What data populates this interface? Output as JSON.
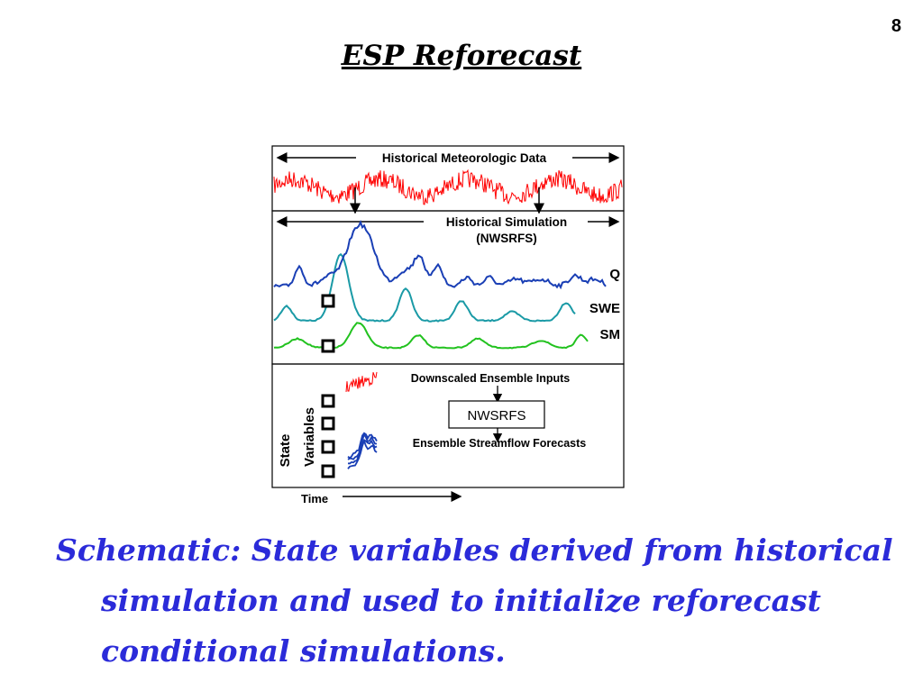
{
  "page_number": "8",
  "title": "ESP Reforecast",
  "diagram": {
    "panel1": {
      "label": "Historical Meteorologic Data"
    },
    "panel2": {
      "label_line1": "Historical Simulation",
      "label_line2": "(NWSRFS)",
      "series": [
        {
          "label": "Q",
          "color": "#1a3fb5"
        },
        {
          "label": "SWE",
          "color": "#1a9aa6"
        },
        {
          "label": "SM",
          "color": "#22c21f"
        }
      ]
    },
    "panel3": {
      "inputs_label": "Downscaled Ensemble Inputs",
      "model_label": "NWSRFS",
      "outputs_label": "Ensemble Streamflow Forecasts",
      "state_label_line1": "State",
      "state_label_line2": "Variables"
    },
    "time_label": "Time",
    "met_color": "#ff0000"
  },
  "caption": "Schematic: State variables derived from historical simulation and used to initialize reforecast conditional simulations."
}
